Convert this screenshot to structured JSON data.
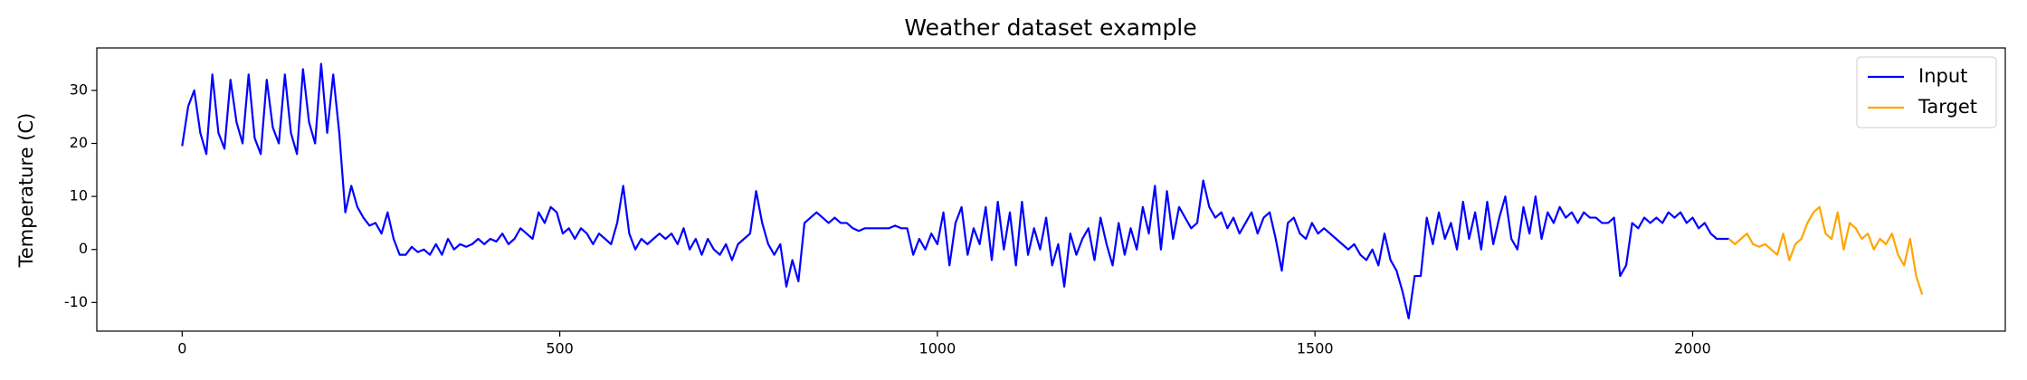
{
  "chart_data": {
    "type": "line",
    "title": "Weather dataset example",
    "y_label": "Temperature (C)",
    "xlim": [
      -113,
      2414
    ],
    "ylim": [
      -15.4,
      38.0
    ],
    "xticks": [
      0,
      500,
      1000,
      1500,
      2000
    ],
    "yticks": [
      -10,
      0,
      10,
      20,
      30
    ],
    "grid": false,
    "legend": "upper right",
    "series": [
      {
        "name": "Input",
        "color": "#0000ff",
        "x": [
          0,
          8,
          16,
          24,
          32,
          40,
          48,
          56,
          64,
          72,
          80,
          88,
          96,
          104,
          112,
          120,
          128,
          136,
          144,
          152,
          160,
          168,
          176,
          184,
          192,
          200,
          208,
          216,
          224,
          232,
          240,
          248,
          256,
          264,
          272,
          280,
          288,
          296,
          304,
          312,
          320,
          328,
          336,
          344,
          352,
          360,
          368,
          376,
          384,
          392,
          400,
          408,
          416,
          424,
          432,
          440,
          448,
          456,
          464,
          472,
          480,
          488,
          496,
          504,
          512,
          520,
          528,
          536,
          544,
          552,
          560,
          568,
          576,
          584,
          592,
          600,
          608,
          616,
          624,
          632,
          640,
          648,
          656,
          664,
          672,
          680,
          688,
          696,
          704,
          712,
          720,
          728,
          736,
          744,
          752,
          760,
          768,
          776,
          784,
          792,
          800,
          808,
          816,
          824,
          832,
          840,
          848,
          856,
          864,
          872,
          880,
          888,
          896,
          904,
          912,
          920,
          928,
          936,
          944,
          952,
          960,
          968,
          976,
          984,
          992,
          1000,
          1008,
          1016,
          1024,
          1032,
          1040,
          1048,
          1056,
          1064,
          1072,
          1080,
          1088,
          1096,
          1104,
          1112,
          1120,
          1128,
          1136,
          1144,
          1152,
          1160,
          1168,
          1176,
          1184,
          1192,
          1200,
          1208,
          1216,
          1224,
          1232,
          1240,
          1248,
          1256,
          1264,
          1272,
          1280,
          1288,
          1296,
          1304,
          1312,
          1320,
          1328,
          1336,
          1344,
          1352,
          1360,
          1368,
          1376,
          1384,
          1392,
          1400,
          1408,
          1416,
          1424,
          1432,
          1440,
          1448,
          1456,
          1464,
          1472,
          1480,
          1488,
          1496,
          1504,
          1512,
          1520,
          1528,
          1536,
          1544,
          1552,
          1560,
          1568,
          1576,
          1584,
          1592,
          1600,
          1608,
          1616,
          1624,
          1632,
          1640,
          1648,
          1656,
          1664,
          1672,
          1680,
          1688,
          1696,
          1704,
          1712,
          1720,
          1728,
          1736,
          1744,
          1752,
          1760,
          1768,
          1776,
          1784,
          1792,
          1800,
          1808,
          1816,
          1824,
          1832,
          1840,
          1848,
          1856,
          1864,
          1872,
          1880,
          1888,
          1896,
          1904,
          1912,
          1920,
          1928,
          1936,
          1944,
          1952,
          1960,
          1968,
          1976,
          1984,
          1992,
          2000,
          2008,
          2016,
          2024,
          2032,
          2040,
          2048
        ],
        "values": [
          19.5,
          27,
          30,
          22,
          18,
          33,
          22,
          19,
          32,
          24,
          20,
          33,
          21,
          18,
          32,
          23,
          20,
          33,
          22,
          18,
          34,
          24,
          20,
          35,
          22,
          33,
          22,
          7,
          12,
          8,
          6,
          4.5,
          5,
          3,
          7,
          2,
          -1,
          -1,
          0.5,
          -0.5,
          0,
          -1,
          1,
          -1,
          2,
          0,
          1,
          0.5,
          1,
          2,
          1,
          2,
          1.5,
          3,
          1,
          2,
          4,
          3,
          2,
          7,
          5,
          8,
          7,
          3,
          4,
          2,
          4,
          3,
          1,
          3,
          2,
          1,
          5,
          12,
          3,
          0,
          2,
          1,
          2,
          3,
          2,
          3,
          1,
          4,
          0,
          2,
          -1,
          2,
          0,
          -1,
          1,
          -2,
          1,
          2,
          3,
          11,
          5,
          1,
          -1,
          1,
          -7,
          -2,
          -6,
          5,
          6,
          7,
          6,
          5,
          6,
          5,
          5,
          4,
          3.5,
          4,
          4,
          4,
          4,
          4,
          4.5,
          4,
          4,
          -1,
          2,
          0,
          3,
          1,
          7,
          -3,
          5,
          8,
          -1,
          4,
          1,
          8,
          -2,
          9,
          0,
          7,
          -3,
          9,
          -1,
          4,
          0,
          6,
          -3,
          1,
          -7,
          3,
          -1,
          2,
          4,
          -2,
          6,
          1,
          -3,
          5,
          -1,
          4,
          0,
          8,
          3,
          12,
          0,
          11,
          2,
          8,
          6,
          4,
          5,
          13,
          8,
          6,
          7,
          4,
          6,
          3,
          5,
          7,
          3,
          6,
          7,
          2,
          -4,
          5,
          6,
          3,
          2,
          5,
          3,
          4,
          3,
          2,
          1,
          0,
          1,
          -1,
          -2,
          0,
          -3,
          3,
          -2,
          -4,
          -8,
          -13,
          -5,
          -5,
          6,
          1,
          7,
          2,
          5,
          0,
          9,
          2,
          7,
          0,
          9,
          1,
          6,
          10,
          2,
          0,
          8,
          3,
          10,
          2,
          7,
          5,
          8,
          6,
          7,
          5,
          7,
          6,
          6,
          5,
          5,
          6,
          -5,
          -3,
          5,
          4,
          6,
          5,
          6,
          5,
          7,
          6,
          7,
          5,
          6,
          4,
          5,
          3,
          2,
          2,
          2
        ]
      },
      {
        "name": "Target",
        "color": "#ffa500",
        "x": [
          2048,
          2056,
          2064,
          2072,
          2080,
          2088,
          2096,
          2104,
          2112,
          2120,
          2128,
          2136,
          2144,
          2152,
          2160,
          2168,
          2176,
          2184,
          2192,
          2200,
          2208,
          2216,
          2224,
          2232,
          2240,
          2248,
          2256,
          2264,
          2272,
          2280,
          2288,
          2296,
          2304
        ],
        "values": [
          2,
          1,
          2,
          3,
          1,
          0.5,
          1,
          0,
          -1,
          3,
          -2,
          1,
          2,
          5,
          7,
          8,
          3,
          2,
          7,
          0,
          5,
          4,
          2,
          3,
          0,
          2,
          1,
          3,
          -1,
          -3,
          2,
          -5,
          -8.5
        ]
      }
    ]
  }
}
